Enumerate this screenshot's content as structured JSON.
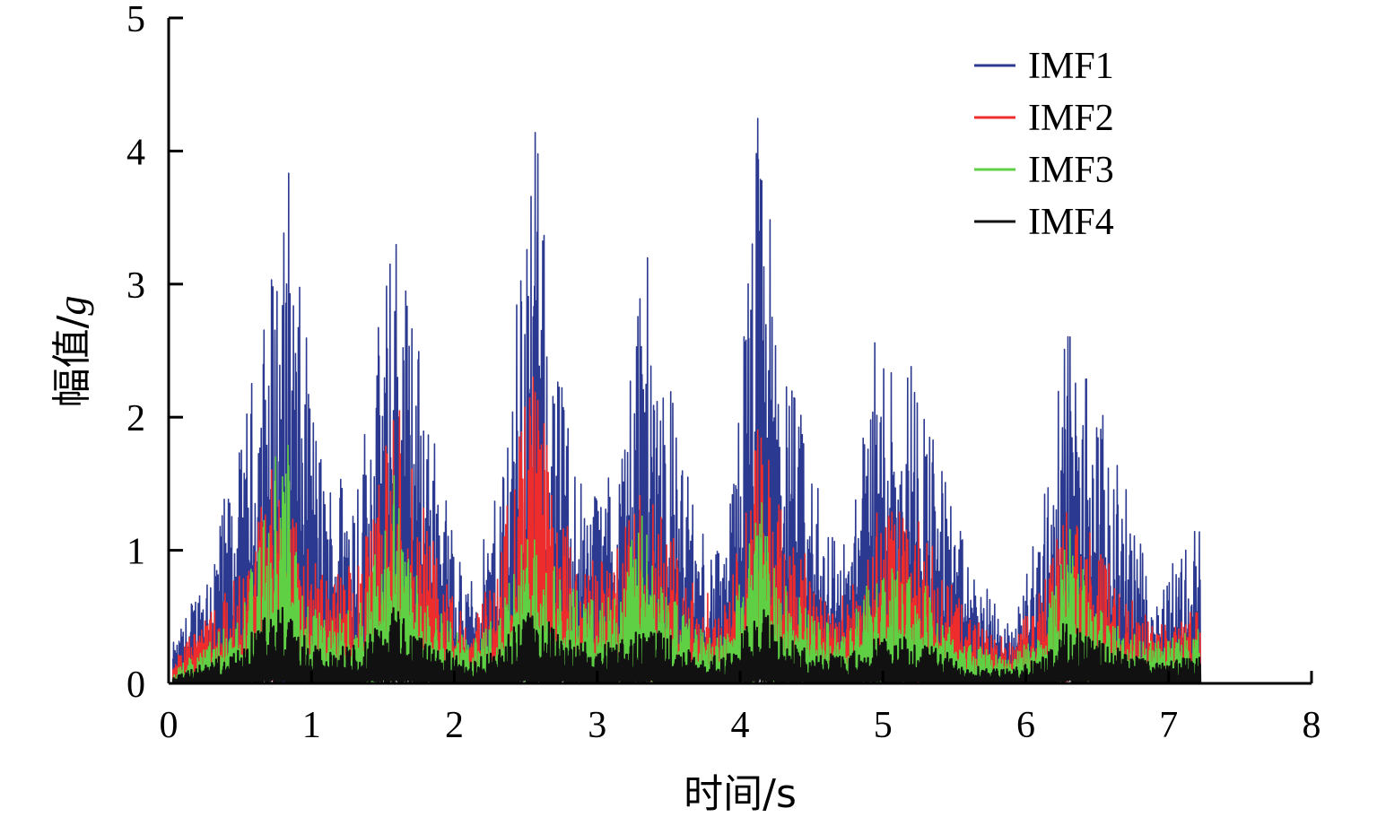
{
  "chart_data": {
    "type": "line",
    "title": "",
    "xlabel": "时间/s",
    "ylabel_prefix": "幅值/",
    "ylabel_unit": "g",
    "xlim": [
      0,
      8
    ],
    "ylim": [
      0,
      5
    ],
    "x_ticks": [
      "0",
      "1",
      "2",
      "3",
      "4",
      "5",
      "6",
      "7",
      "8"
    ],
    "y_ticks": [
      "0",
      "1",
      "2",
      "3",
      "4",
      "5"
    ],
    "grid": false,
    "legend_position": "top-right",
    "sample_times": [
      0.05,
      0.25,
      0.5,
      0.75,
      0.85,
      0.9,
      1.1,
      1.35,
      1.6,
      1.7,
      1.9,
      2.1,
      2.3,
      2.55,
      2.7,
      2.9,
      3.15,
      3.3,
      3.45,
      3.7,
      3.9,
      4.15,
      4.25,
      4.5,
      4.75,
      4.95,
      5.15,
      5.3,
      5.6,
      5.9,
      6.1,
      6.3,
      6.45,
      6.7,
      6.9,
      7.2
    ],
    "series": [
      {
        "name": "IMF1",
        "color": "#2b3990",
        "envelope": [
          0.3,
          0.9,
          1.7,
          3.3,
          3.9,
          3.0,
          1.5,
          1.8,
          3.6,
          2.9,
          1.6,
          0.7,
          1.4,
          4.3,
          2.5,
          1.5,
          1.6,
          3.4,
          2.6,
          1.2,
          0.9,
          4.6,
          2.8,
          1.6,
          1.0,
          2.6,
          2.7,
          2.1,
          0.9,
          0.4,
          1.3,
          2.7,
          2.3,
          1.4,
          0.7,
          1.2
        ]
      },
      {
        "name": "IMF2",
        "color": "#ee2c2c",
        "envelope": [
          0.2,
          0.5,
          0.8,
          1.8,
          1.6,
          1.1,
          0.8,
          0.9,
          2.2,
          1.6,
          0.9,
          0.4,
          0.9,
          2.5,
          1.4,
          0.9,
          1.0,
          1.5,
          1.3,
          0.7,
          0.6,
          2.0,
          1.4,
          0.9,
          0.6,
          1.3,
          1.3,
          1.1,
          0.5,
          0.3,
          0.7,
          1.4,
          1.1,
          0.7,
          0.4,
          0.6
        ]
      },
      {
        "name": "IMF3",
        "color": "#5fd043",
        "envelope": [
          0.1,
          0.3,
          0.5,
          1.7,
          1.8,
          0.8,
          0.5,
          0.6,
          1.6,
          1.0,
          0.6,
          0.3,
          0.5,
          1.3,
          0.9,
          0.6,
          0.7,
          1.3,
          0.8,
          0.4,
          0.4,
          1.4,
          0.9,
          0.5,
          0.4,
          0.9,
          0.8,
          0.7,
          0.3,
          0.2,
          0.4,
          1.3,
          0.6,
          0.4,
          0.3,
          0.4
        ]
      },
      {
        "name": "IMF4",
        "color": "#111111",
        "envelope": [
          0.05,
          0.15,
          0.25,
          0.6,
          0.5,
          0.4,
          0.25,
          0.3,
          0.6,
          0.45,
          0.3,
          0.15,
          0.25,
          0.6,
          0.4,
          0.3,
          0.3,
          0.45,
          0.4,
          0.2,
          0.2,
          0.6,
          0.4,
          0.25,
          0.2,
          0.35,
          0.35,
          0.3,
          0.15,
          0.1,
          0.2,
          0.5,
          0.35,
          0.25,
          0.15,
          0.2
        ]
      }
    ]
  }
}
